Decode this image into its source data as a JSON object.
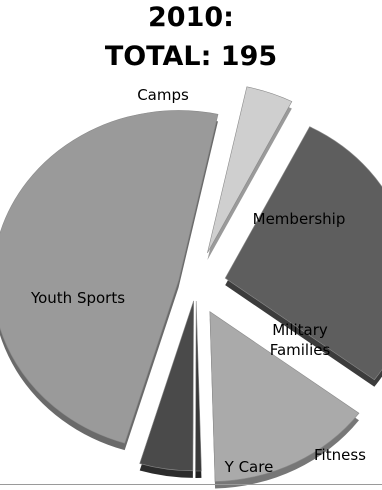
{
  "title_lines": [
    "2010:",
    "TOTAL: 195"
  ],
  "chart_data": {
    "type": "pie",
    "title": "2010:\nTOTAL: 195",
    "total": 195,
    "slices": [
      {
        "label": "Membership",
        "value": 54,
        "color": "#5e5e5e",
        "side": "#3c3c3c",
        "text_color": "#000000"
      },
      {
        "label": "Military Families",
        "value": 28,
        "color": "#aaaaaa",
        "side": "#777777",
        "text_color": "#000000"
      },
      {
        "label": "Fitness",
        "value": 1,
        "color": "#3a3a3a",
        "side": "#222222",
        "text_color": "#000000"
      },
      {
        "label": "Y Care",
        "value": 9,
        "color": "#4a4a4a",
        "side": "#2c2c2c",
        "text_color": "#000000"
      },
      {
        "label": "Youth Sports",
        "value": 95,
        "color": "#9a9a9a",
        "side": "#6a6a6a",
        "text_color": "#000000"
      },
      {
        "label": "Camps",
        "value": 8,
        "color": "#cfcfcf",
        "side": "#9a9a9a",
        "text_color": "#000000"
      }
    ],
    "legend": "none",
    "data_labels": "category_name"
  }
}
